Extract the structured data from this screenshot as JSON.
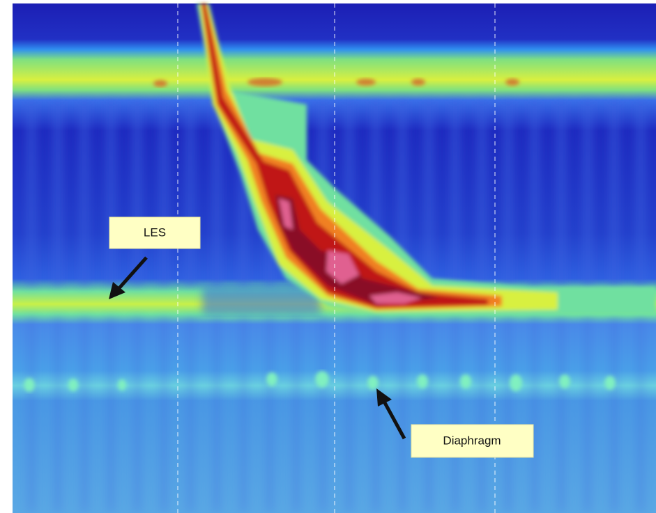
{
  "labels": {
    "les": "LES",
    "diaphragm": "Diaphragm"
  }
}
